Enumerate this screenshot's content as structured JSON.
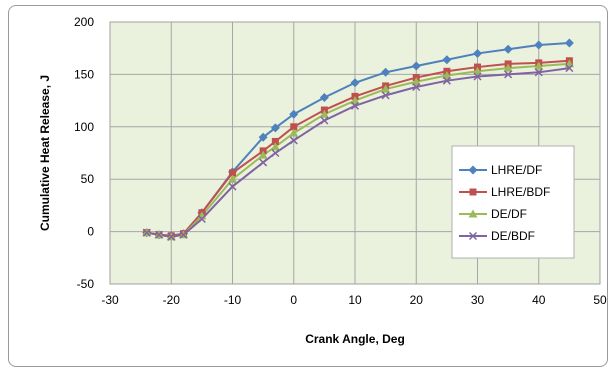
{
  "chart_data": {
    "type": "line",
    "title": "",
    "xlabel": "Crank Angle, Deg",
    "ylabel": "Cumulative Heat Release, J",
    "xlim": [
      -30,
      50
    ],
    "ylim": [
      -50,
      200
    ],
    "xticks": [
      -30,
      -20,
      -10,
      0,
      10,
      20,
      30,
      40,
      50
    ],
    "yticks": [
      -50,
      0,
      50,
      100,
      150,
      200
    ],
    "grid": true,
    "legend_position": "right",
    "plot_background": "#eaf1dd",
    "x": [
      -24,
      -22,
      -20,
      -18,
      -15,
      -10,
      -5,
      -3,
      0,
      5,
      10,
      15,
      20,
      25,
      30,
      35,
      40,
      45
    ],
    "series": [
      {
        "name": "LHRE/DF",
        "color": "#4f81bd",
        "marker": "diamond",
        "values": [
          -1,
          -3,
          -4,
          -2,
          18,
          57,
          90,
          99,
          112,
          128,
          142,
          152,
          158,
          164,
          170,
          174,
          178,
          180
        ]
      },
      {
        "name": "LHRE/BDF",
        "color": "#c0504d",
        "marker": "square",
        "values": [
          -1,
          -3,
          -4,
          -2,
          18,
          56,
          77,
          86,
          100,
          116,
          129,
          139,
          147,
          153,
          157,
          160,
          161,
          163
        ]
      },
      {
        "name": "DE/DF",
        "color": "#9bbb59",
        "marker": "triangle",
        "values": [
          -1,
          -3,
          -5,
          -3,
          15,
          50,
          73,
          81,
          94,
          112,
          125,
          136,
          143,
          149,
          153,
          156,
          158,
          160
        ]
      },
      {
        "name": "DE/BDF",
        "color": "#8064a2",
        "marker": "x",
        "values": [
          -1,
          -3,
          -5,
          -3,
          12,
          43,
          66,
          75,
          87,
          106,
          120,
          130,
          138,
          144,
          148,
          150,
          152,
          156
        ]
      }
    ]
  }
}
